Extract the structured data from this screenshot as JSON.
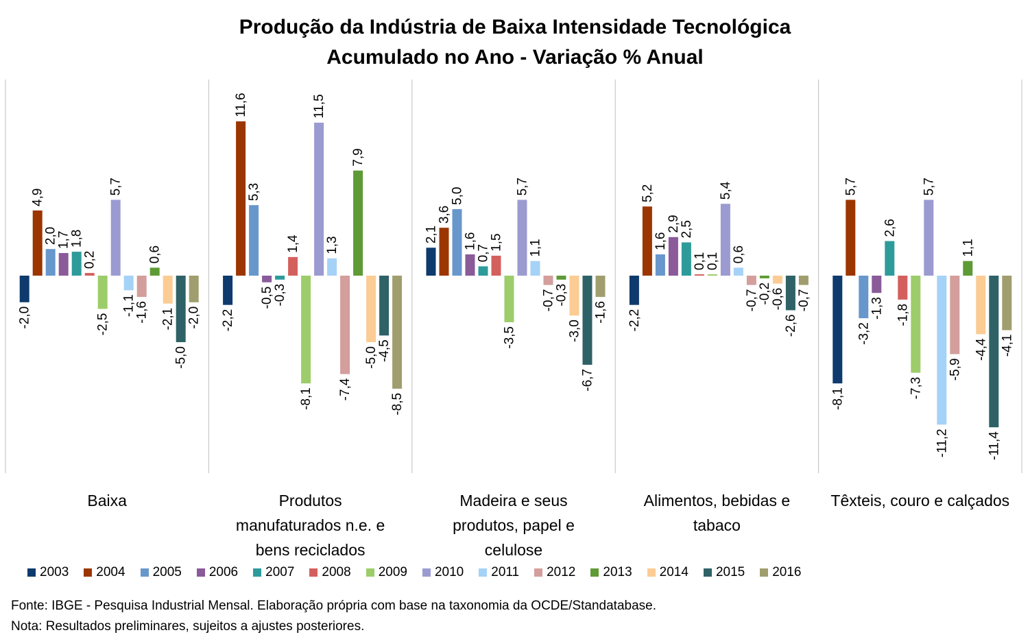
{
  "title": "Produção da Indústria de Baixa Intensidade Tecnológica",
  "subtitle": "Acumulado no Ano - Variação % Anual",
  "source": "Fonte:  IBGE - Pesquisa Industrial Mensal. Elaboração própria com base na taxonomia da OCDE/Standatabase.",
  "note": "Nota: Resultados preliminares, sujeitos a ajustes posteriores.",
  "chart_data": {
    "type": "bar",
    "categories": [
      [
        "Baixa"
      ],
      [
        "Produtos",
        "manufaturados n.e. e",
        "bens reciclados"
      ],
      [
        "Madeira e seus",
        "produtos, papel e",
        "celulose"
      ],
      [
        "Alimentos, bebidas e",
        "tabaco"
      ],
      [
        "Têxteis, couro e calçados"
      ]
    ],
    "series": [
      {
        "name": "2003",
        "color": "#0e3a6e",
        "values": [
          -2.0,
          -2.2,
          2.1,
          -2.2,
          -8.1
        ]
      },
      {
        "name": "2004",
        "color": "#9c3600",
        "values": [
          4.9,
          11.6,
          3.6,
          5.2,
          5.7
        ]
      },
      {
        "name": "2005",
        "color": "#6897cb",
        "values": [
          2.0,
          5.3,
          5.0,
          1.6,
          -3.2
        ]
      },
      {
        "name": "2006",
        "color": "#8a5a99",
        "values": [
          1.7,
          -0.5,
          1.6,
          2.9,
          -1.3
        ]
      },
      {
        "name": "2007",
        "color": "#2e9b9b",
        "values": [
          1.8,
          -0.3,
          0.7,
          2.5,
          2.6
        ]
      },
      {
        "name": "2008",
        "color": "#d4605e",
        "values": [
          0.2,
          1.4,
          1.5,
          0.1,
          -1.8
        ]
      },
      {
        "name": "2009",
        "color": "#9dcd6a",
        "values": [
          -2.5,
          -8.1,
          -3.5,
          0.1,
          -7.3
        ]
      },
      {
        "name": "2010",
        "color": "#9b9bd1",
        "values": [
          5.7,
          11.5,
          5.7,
          5.4,
          5.7
        ]
      },
      {
        "name": "2011",
        "color": "#a5d2f7",
        "values": [
          -1.1,
          1.3,
          1.1,
          0.6,
          -11.2
        ]
      },
      {
        "name": "2012",
        "color": "#d39e9c",
        "values": [
          -1.6,
          -7.4,
          -0.7,
          -0.7,
          -5.9
        ]
      },
      {
        "name": "2013",
        "color": "#5e9a35",
        "values": [
          0.6,
          7.9,
          -0.3,
          -0.2,
          1.1
        ]
      },
      {
        "name": "2014",
        "color": "#fbcc94",
        "values": [
          -2.1,
          -5.0,
          -3.0,
          -0.6,
          -4.4
        ]
      },
      {
        "name": "2015",
        "color": "#2e6266",
        "values": [
          -5.0,
          -4.5,
          -6.7,
          -2.6,
          -11.4
        ]
      },
      {
        "name": "2016",
        "color": "#a09e6e",
        "values": [
          -2.0,
          -8.5,
          -1.6,
          -0.7,
          -4.1
        ]
      }
    ],
    "ylim": [
      -15,
      15
    ],
    "grid": false,
    "data_labels": true,
    "legend_position": "bottom"
  }
}
